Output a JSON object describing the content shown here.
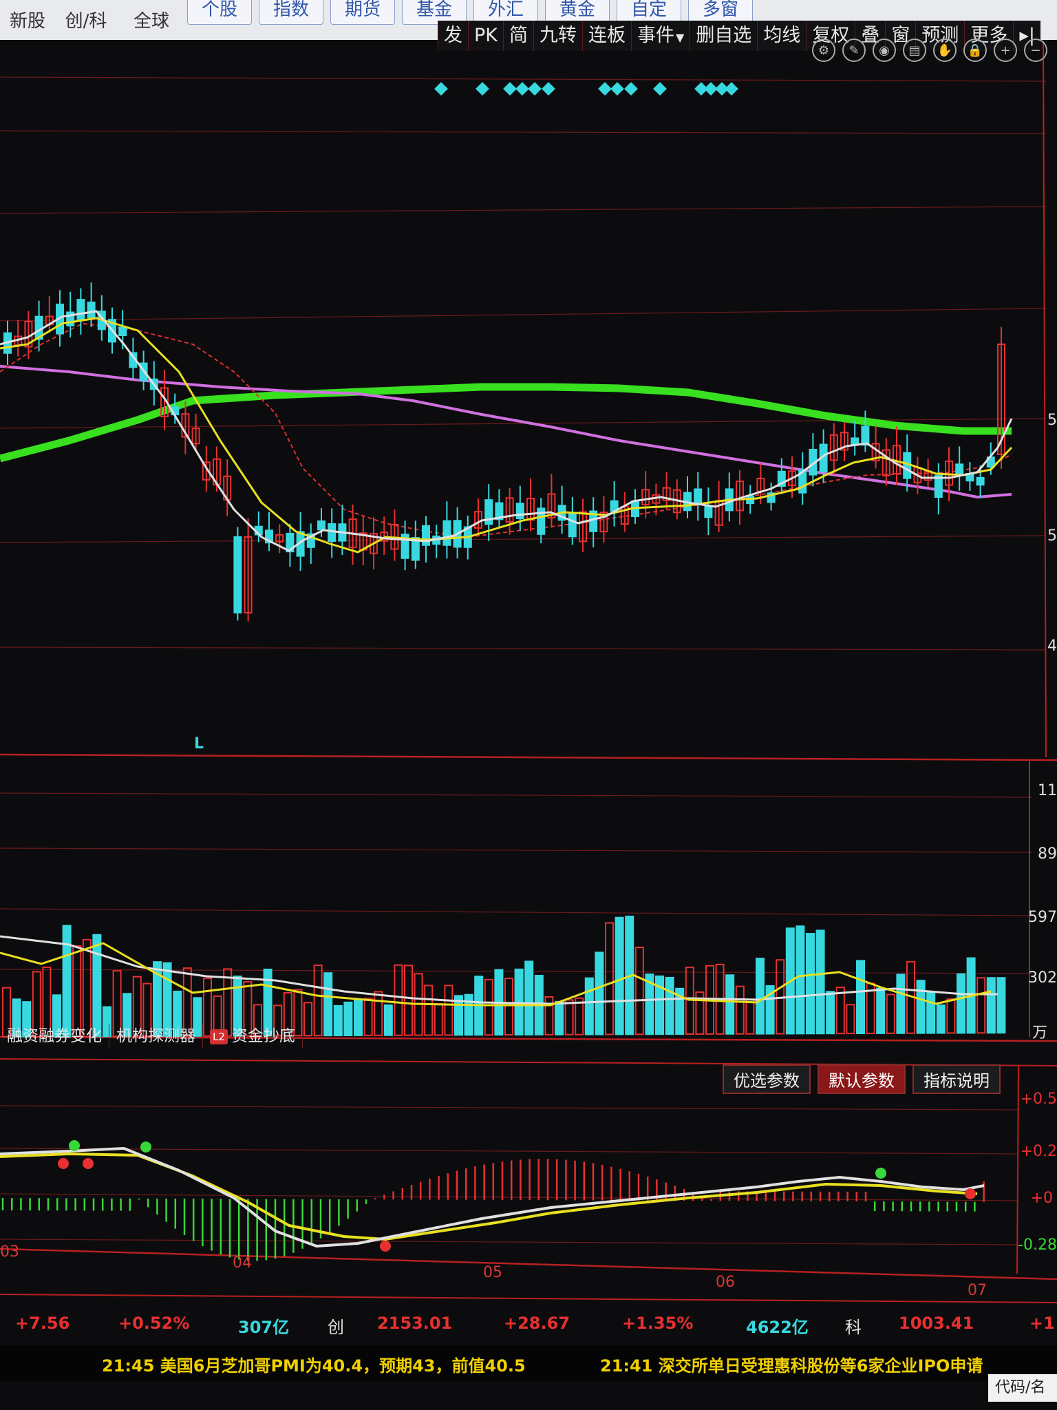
{
  "nav": {
    "row1": [
      "新股",
      "创/科",
      "全球"
    ],
    "row2": [
      "个股",
      "指数",
      "期货",
      "基金",
      "外汇",
      "黄金",
      "自定",
      "多窗"
    ]
  },
  "toolbar": {
    "buttons": [
      "发",
      "PK",
      "简",
      "九转",
      "连板",
      "事件",
      "删自选",
      "均线",
      "复权",
      "叠",
      "窗",
      "预测",
      "更多"
    ],
    "more_arrow": "▸|"
  },
  "tool_icons": [
    "settings-icon",
    "pen-icon",
    "eye-icon",
    "save-icon",
    "hand-icon",
    "lock-icon",
    "zoom-in-icon",
    "zoom-out-icon"
  ],
  "main_chart": {
    "marker": "L",
    "y_axis_labels": [
      "5",
      "5",
      "4"
    ]
  },
  "volume": {
    "y_axis_labels": [
      "11",
      "89",
      "597",
      "302",
      "万"
    ],
    "tabs": [
      "融资融券变化",
      "机构探测器",
      "资金抄底"
    ],
    "l2_badge": "L2"
  },
  "indicator": {
    "tabs": [
      "优选参数",
      "默认参数",
      "指标说明"
    ],
    "active_tab": "默认参数",
    "y_axis_labels": [
      "+0.5",
      "+0.2",
      "+0",
      "-0.28"
    ]
  },
  "x_axis_labels": [
    "03",
    "04",
    "05",
    "06",
    "07"
  ],
  "status": {
    "values": [
      "+7.56",
      "+0.52%",
      "307亿",
      "创",
      "2153.01",
      "+28.67",
      "+1.35%",
      "4622亿",
      "科",
      "1003.41",
      "+1"
    ]
  },
  "ticker": {
    "items": [
      "21:45 美国6月芝加哥PMI为40.4，预期43，前值40.5",
      "21:41 深交所单日受理惠科股份等6家企业IPO申请"
    ],
    "code_box": "代码/名"
  },
  "colors": {
    "up": "#e83030",
    "down": "#38d8e0",
    "ma_white": "#e0e0e0",
    "ma_yellow": "#e8e020",
    "ma_purple": "#d070e0",
    "ma_green": "#38e020",
    "grid": "#6a1a1a",
    "background": "#0c0c0e"
  }
}
